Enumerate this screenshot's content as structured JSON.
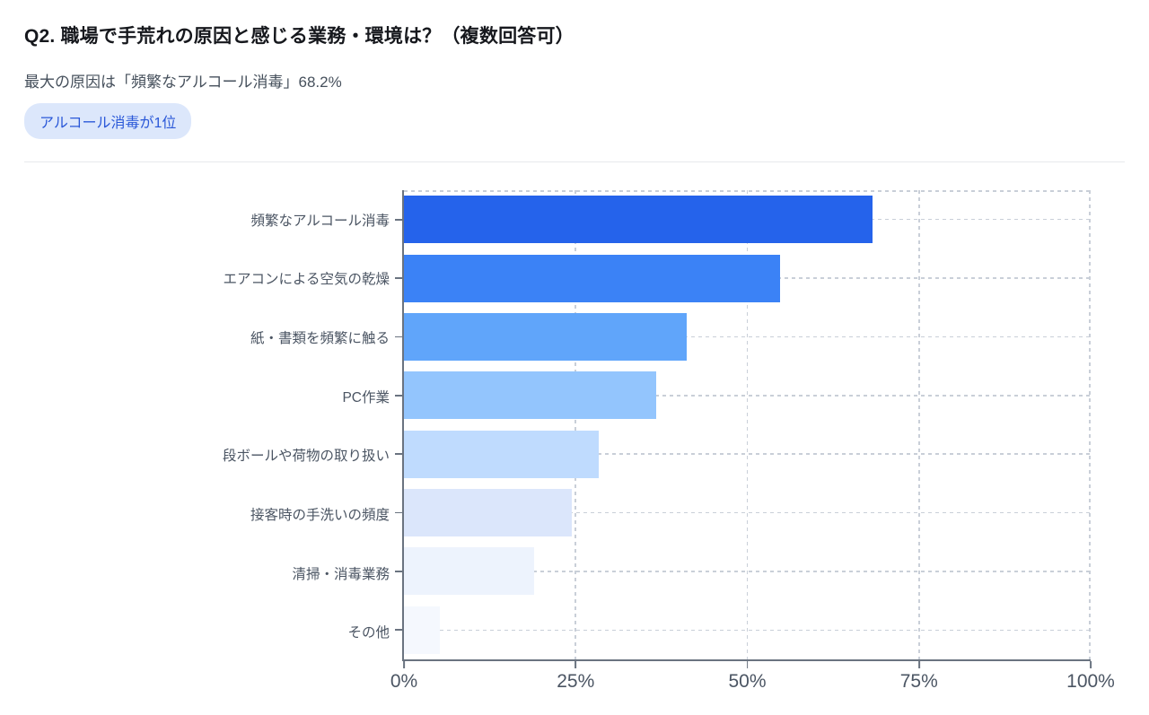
{
  "header": {
    "title": "Q2. 職場で手荒れの原因と感じる業務・環境は？（複数回答可）",
    "subtitle": "最大の原因は「頻繁なアルコール消毒」68.2%",
    "badge_label": "アルコール消毒が1位"
  },
  "chart_data": {
    "type": "bar",
    "orientation": "horizontal",
    "title": "",
    "xlabel": "",
    "ylabel": "",
    "xlim": [
      0,
      100
    ],
    "x_tick_values": [
      0,
      25,
      50,
      75,
      100
    ],
    "x_tick_labels": [
      "0%",
      "25%",
      "50%",
      "75%",
      "100%"
    ],
    "grid": "dashed",
    "legend": "none",
    "categories": [
      "頻繁なアルコール消毒",
      "エアコンによる空気の乾燥",
      "紙・書類を頻繁に触る",
      "PC作業",
      "段ボールや荷物の取り扱い",
      "接客時の手洗いの頻度",
      "清掃・消毒業務",
      "その他"
    ],
    "values": [
      68.2,
      54.8,
      41.2,
      36.7,
      28.4,
      24.5,
      19.0,
      5.2
    ],
    "bar_colors": [
      "#2563eb",
      "#3b82f6",
      "#60a5fa",
      "#93c5fd",
      "#bfdbfe",
      "#dbe6fb",
      "#edf3fd",
      "#f5f8fe"
    ]
  },
  "colors": {
    "accent": "#2563eb",
    "badge_bg": "#dce7fb",
    "badge_text": "#2a58d8",
    "axis_line": "#6a7380",
    "gridline": "#c9cfd8",
    "title_text": "#16181d",
    "subtitle_text": "#46505c",
    "category_label_text": "#4b5563",
    "tick_label_text": "#4b5563"
  }
}
